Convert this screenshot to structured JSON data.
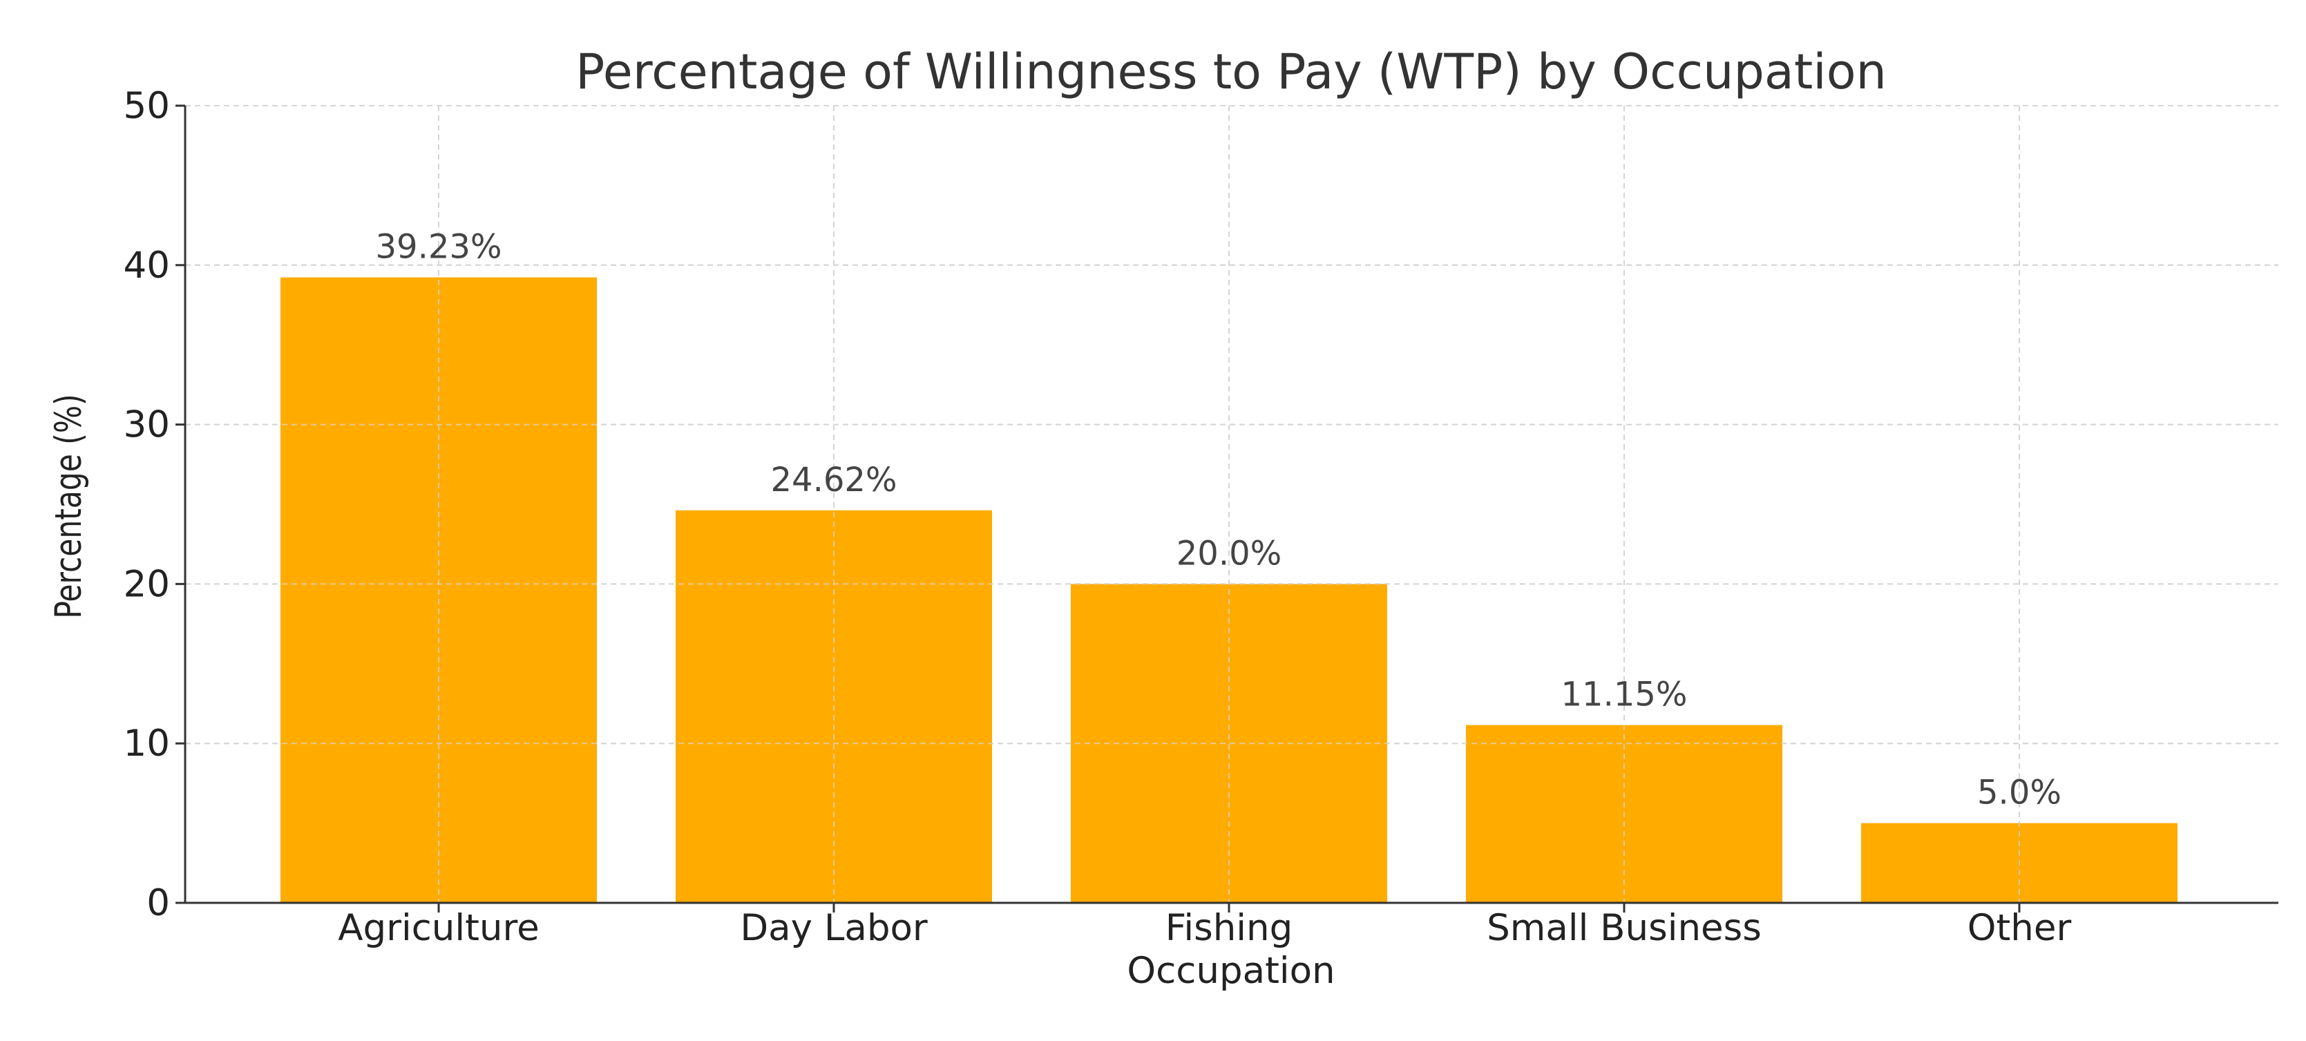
{
  "chart_data": {
    "type": "bar",
    "title": "Percentage of Willingness to Pay (WTP) by Occupation",
    "xlabel": "Occupation",
    "ylabel": "Percentage (%)",
    "categories": [
      "Agriculture",
      "Day Labor",
      "Fishing",
      "Small Business",
      "Other"
    ],
    "values": [
      39.23,
      24.62,
      20.0,
      11.15,
      5.0
    ],
    "value_labels": [
      "39.23%",
      "24.62%",
      "20.0%",
      "11.15%",
      "5.0%"
    ],
    "ylim": [
      0,
      50
    ],
    "yticks": [
      0,
      10,
      20,
      30,
      40,
      50
    ],
    "grid": true,
    "grid_style": "dashed",
    "bar_color": "#ffab00"
  }
}
